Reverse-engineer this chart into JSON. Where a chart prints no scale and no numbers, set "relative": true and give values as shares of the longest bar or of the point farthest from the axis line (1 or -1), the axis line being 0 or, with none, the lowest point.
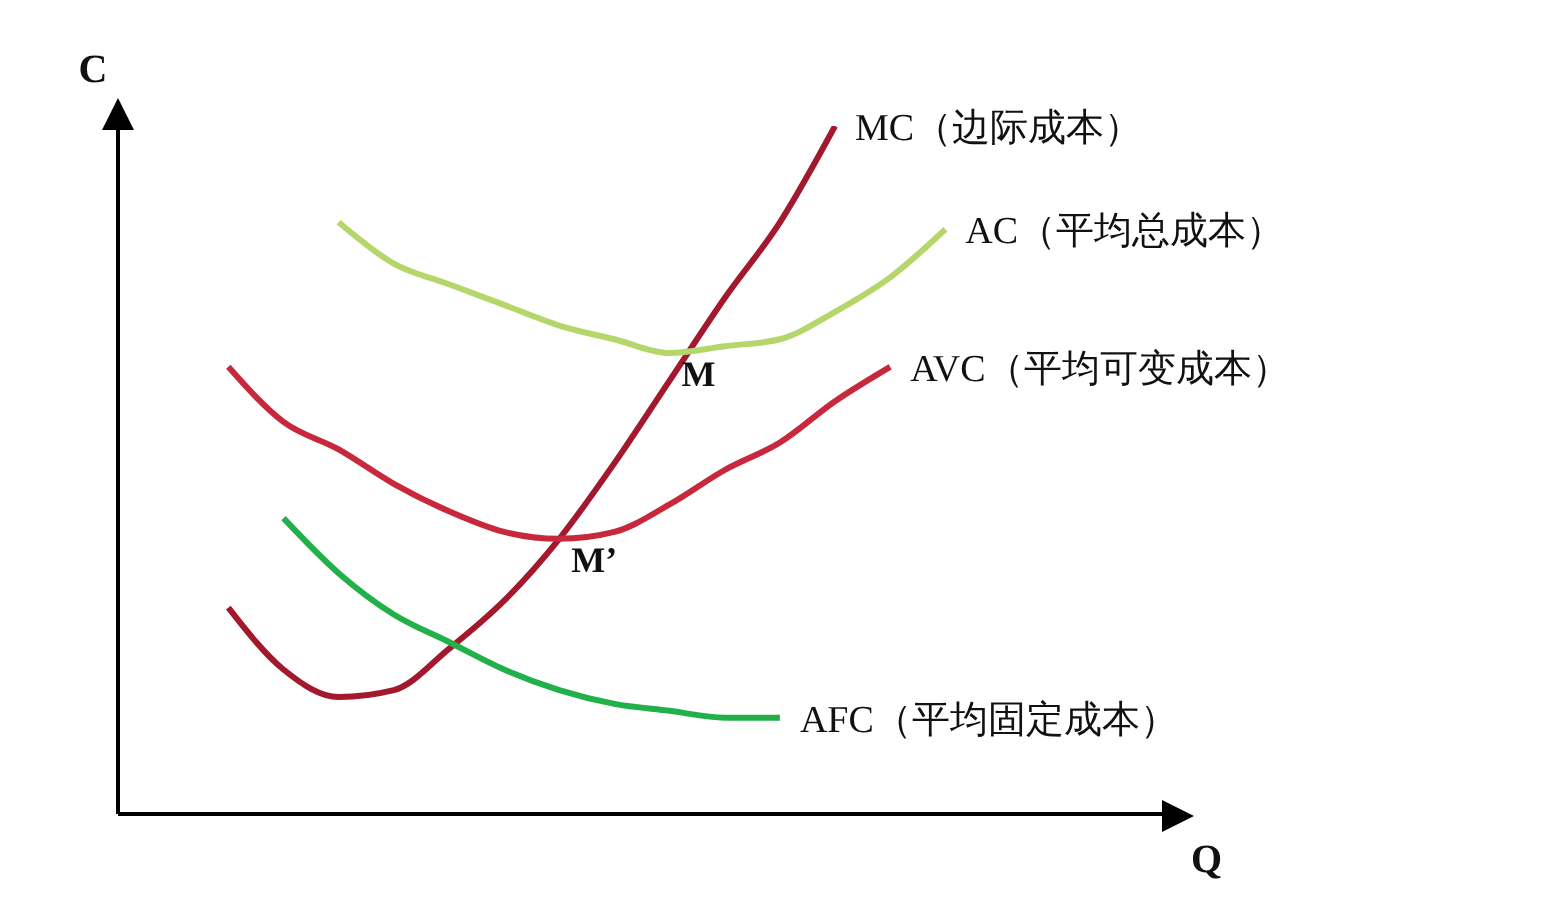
{
  "chart_data": {
    "type": "line",
    "relative": true,
    "xlabel": "Q",
    "ylabel": "C",
    "categories": [
      null,
      null,
      null,
      null,
      null,
      null,
      null,
      null,
      null,
      null,
      null,
      null,
      null,
      null,
      null,
      null,
      null,
      null,
      null,
      null
    ],
    "series": [
      {
        "name": "MC（边际成本）",
        "color": "#a3182c",
        "values": [
          null,
          null,
          0.3,
          0.21,
          0.17,
          0.18,
          0.24,
          0.31,
          0.4,
          0.51,
          0.63,
          0.75,
          0.86,
          1,
          null,
          null,
          null,
          null,
          null,
          null
        ]
      },
      {
        "name": "AC（平均总成本）",
        "color": "#b5d66a",
        "values": [
          null,
          null,
          null,
          null,
          0.86,
          0.8,
          0.77,
          0.74,
          0.71,
          0.69,
          0.67,
          0.68,
          0.69,
          0.73,
          0.78,
          0.85,
          null,
          null,
          null,
          null
        ]
      },
      {
        "name": "AVC（平均可变成本）",
        "color": "#c8283c",
        "values": [
          null,
          null,
          0.65,
          0.57,
          0.53,
          0.48,
          0.44,
          0.41,
          0.4,
          0.41,
          0.45,
          0.5,
          0.54,
          0.6,
          0.65,
          null,
          null,
          null,
          null,
          null
        ]
      },
      {
        "name": "AFC（平均固定成本）",
        "color": "#22b04a",
        "values": [
          null,
          null,
          null,
          0.43,
          0.35,
          0.29,
          0.25,
          0.21,
          0.18,
          0.16,
          0.15,
          0.14,
          0.14,
          null,
          null,
          null,
          null,
          null,
          null,
          null
        ]
      }
    ],
    "annotations": [
      "M",
      "M’"
    ]
  }
}
